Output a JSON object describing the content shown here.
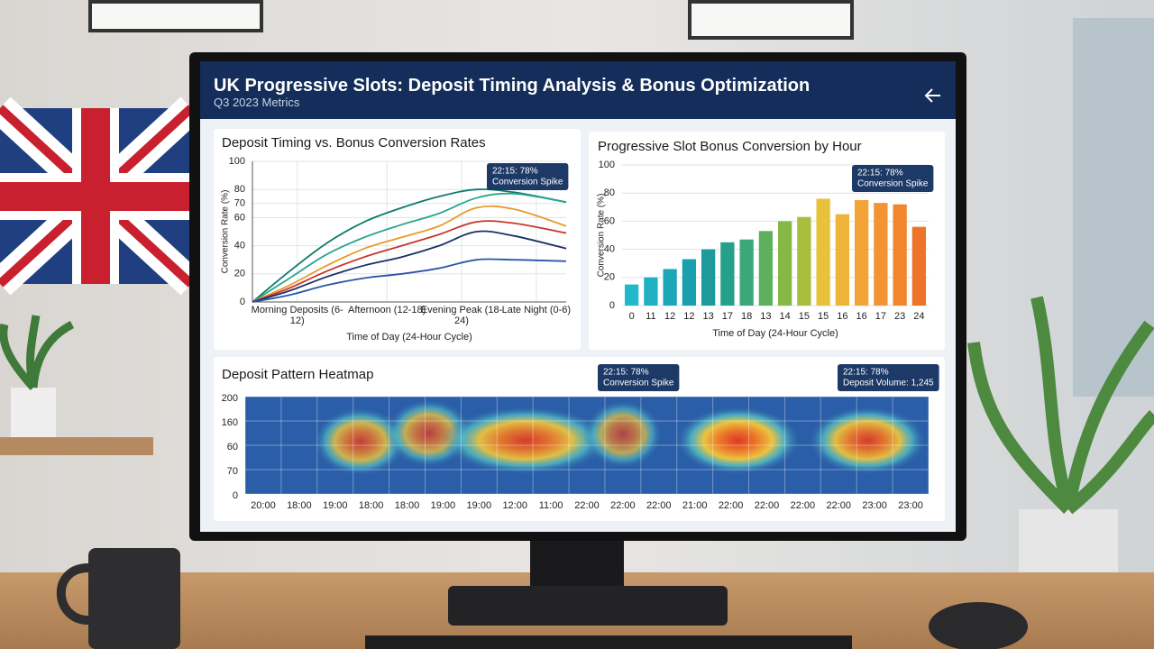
{
  "header": {
    "title": "UK Progressive Slots: Deposit Timing Analysis & Bonus Optimization",
    "subtitle": "Q3 2023 Metrics"
  },
  "chart_data": [
    {
      "type": "line",
      "title": "Deposit Timing vs. Bonus Conversion Rates",
      "y_label": "Conversion Rate (%)",
      "x_label": "Time of Day (24-Hour Cycle)",
      "x": [
        0,
        0.5,
        1,
        1.5,
        2,
        2.5,
        3,
        3.5,
        4.2
      ],
      "xlim": [
        0,
        4.2
      ],
      "xticks": [
        {
          "value": 0.6,
          "label": "Morning Deposits (6-12)"
        },
        {
          "value": 1.8,
          "label": "Afternoon (12-18)"
        },
        {
          "value": 2.8,
          "label": "Evening Peak (18-24)"
        },
        {
          "value": 3.8,
          "label": "Late Night (0-6)"
        }
      ],
      "ylim": [
        0,
        100
      ],
      "yticks": [
        0,
        20,
        40,
        60,
        70,
        80,
        100
      ],
      "grid": true,
      "series": [
        {
          "color": "#0f7a6a",
          "values": [
            0,
            22,
            42,
            57,
            67,
            75,
            80,
            78,
            71
          ]
        },
        {
          "color": "#2aa68c",
          "values": [
            0,
            17,
            34,
            46,
            55,
            63,
            74,
            77,
            71
          ]
        },
        {
          "color": "#e89a2c",
          "values": [
            0,
            12,
            26,
            38,
            46,
            54,
            67,
            66,
            54
          ]
        },
        {
          "color": "#c9352a",
          "values": [
            0,
            10,
            22,
            32,
            40,
            48,
            57,
            56,
            49
          ]
        },
        {
          "color": "#1b2f66",
          "values": [
            0,
            8,
            18,
            26,
            32,
            40,
            50,
            47,
            38
          ]
        },
        {
          "color": "#2c55a8",
          "values": [
            0,
            5,
            12,
            17,
            20,
            24,
            30,
            30,
            29
          ]
        }
      ],
      "annotations": [
        {
          "text": "22:15: 78%",
          "subtext": "Conversion Spike"
        }
      ]
    },
    {
      "type": "bar",
      "title": "Progressive Slot Bonus Conversion by Hour",
      "y_label": "Conversion Rate (%)",
      "x_label": "Time of Day (24-Hour Cycle)",
      "categories": [
        "0",
        "11",
        "12",
        "12",
        "13",
        "17",
        "18",
        "13",
        "14",
        "15",
        "15",
        "16",
        "16",
        "17",
        "23",
        "24"
      ],
      "values": [
        15,
        20,
        26,
        33,
        40,
        45,
        47,
        53,
        60,
        63,
        76,
        65,
        75,
        73,
        72,
        56
      ],
      "colors": [
        "#22b8cc",
        "#1fb0c4",
        "#1ca7b8",
        "#1a9fae",
        "#1c9a9c",
        "#27a08a",
        "#3aa878",
        "#5cb05e",
        "#86b848",
        "#a9bd3c",
        "#e8c23a",
        "#eeb43a",
        "#f2a436",
        "#f29432",
        "#f0862e",
        "#ee742a"
      ],
      "ylim": [
        0,
        100
      ],
      "yticks": [
        0,
        20,
        40,
        60,
        80,
        100
      ],
      "grid": true,
      "annotations": [
        {
          "text": "22:15: 78%",
          "subtext": "Conversion Spike"
        }
      ]
    },
    {
      "type": "heatmap",
      "title": "Deposit Pattern Heatmap",
      "categories": [
        "20:00",
        "18:00",
        "19:00",
        "18:00",
        "18:00",
        "19:00",
        "19:00",
        "12:00",
        "11:00",
        "22:00",
        "22:00",
        "22:00",
        "21:00",
        "22:00",
        "22:00",
        "22:00",
        "22:00",
        "23:00",
        "23:00"
      ],
      "y_categories": [
        "200",
        "160",
        "60",
        "70",
        "0"
      ],
      "hotspots": [
        {
          "x": 2.7,
          "y": 1.85,
          "width": 1.5,
          "value": 80
        },
        {
          "x": 4.6,
          "y": 1.5,
          "width": 1.3,
          "value": 75
        },
        {
          "x": 7.3,
          "y": 1.8,
          "width": 3.6,
          "value": 90
        },
        {
          "x": 10,
          "y": 1.55,
          "width": 1.1,
          "value": 70
        },
        {
          "x": 13.2,
          "y": 1.8,
          "width": 2.4,
          "value": 95
        },
        {
          "x": 16.8,
          "y": 1.8,
          "width": 2.2,
          "value": 90
        }
      ],
      "annotations": [
        {
          "text": "22:15: 78%",
          "subtext": "Conversion Spike"
        },
        {
          "text": "22:15: 78%",
          "subtext": "Deposit Volume: 1,245"
        }
      ]
    }
  ]
}
